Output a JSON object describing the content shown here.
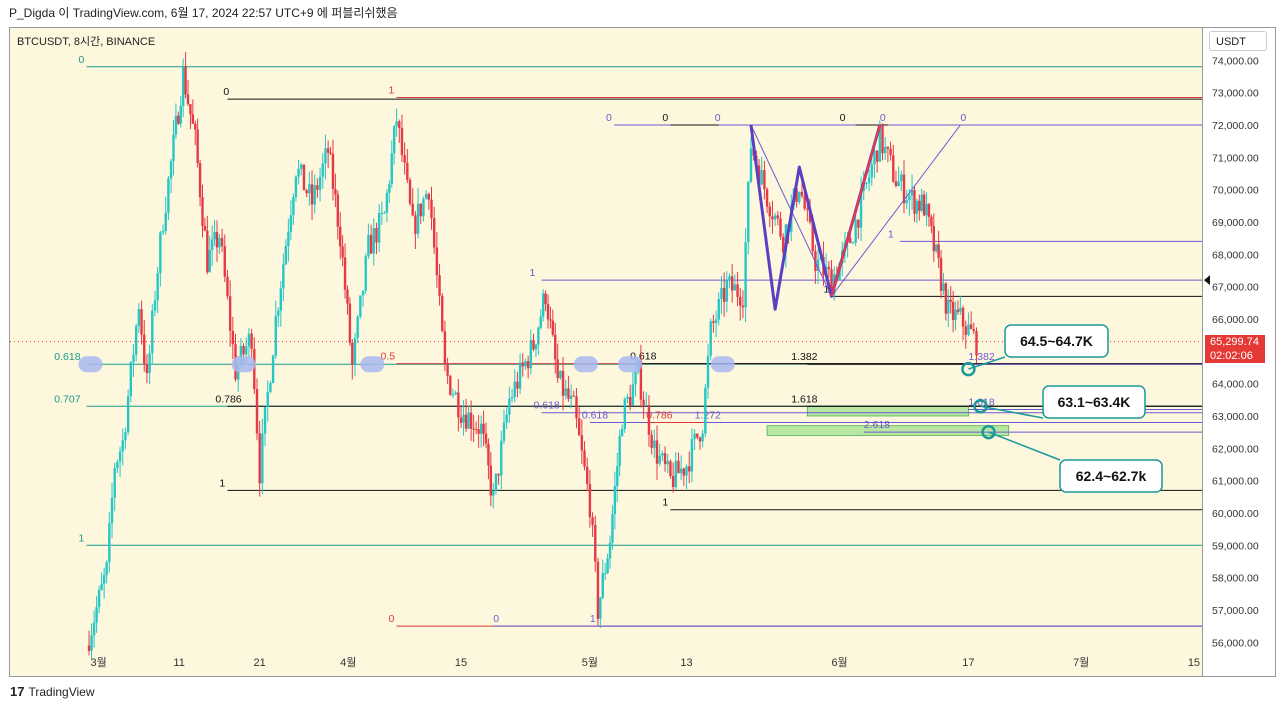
{
  "header": {
    "caption": "P_Digda 이 TradingView.com, 6월 17, 2024 22:57 UTC+9 에 퍼블리쉬했음"
  },
  "chart_header": {
    "symbol": "BTCUSDT, 8시간, BINANCE",
    "currency": "USDT"
  },
  "footer": {
    "brand": "TradingView",
    "logo_glyph": "17"
  },
  "colors": {
    "background": "#fdf7dd",
    "up": "#26c6c6",
    "down": "#e53946",
    "teal_line": "#1a9a8a",
    "purple_line": "#6b5bd2",
    "black_line": "#111111",
    "red_line": "#d83a3a",
    "callout": "#1a9a9a",
    "highlight": "#a8b8f0",
    "zone_green": "#9be08a"
  },
  "chart_data": {
    "type": "candlestick",
    "y_axis": {
      "min": 55700,
      "max": 75000,
      "ticks": [
        74000,
        73000,
        72000,
        71000,
        70000,
        69000,
        68000,
        67000,
        66000,
        65000,
        64000,
        63000,
        62000,
        61000,
        60000,
        59000,
        58000,
        57000,
        56000
      ],
      "tick_labels": [
        "74,000.00",
        "73,000.00",
        "72,000.00",
        "71,000.00",
        "70,000.00",
        "69,000.00",
        "68,000.00",
        "67,000.00",
        "66,000.00",
        "65,000.00",
        "64,000.00",
        "63,000.00",
        "62,000.00",
        "61,000.00",
        "60,000.00",
        "59,000.00",
        "58,000.00",
        "57,000.00",
        "56,000.00"
      ]
    },
    "x_axis": {
      "ticks": [
        {
          "label": "3월",
          "day": 0
        },
        {
          "label": "11",
          "day": 10
        },
        {
          "label": "21",
          "day": 20
        },
        {
          "label": "4월",
          "day": 31
        },
        {
          "label": "15",
          "day": 45
        },
        {
          "label": "5월",
          "day": 61
        },
        {
          "label": "13",
          "day": 73
        },
        {
          "label": "6월",
          "day": 92
        },
        {
          "label": "17",
          "day": 108
        },
        {
          "label": "7월",
          "day": 122
        },
        {
          "label": "15",
          "day": 136
        }
      ],
      "day_min": -11,
      "day_max": 137
    },
    "current_price": {
      "label": "65,299.74",
      "countdown": "02:02:06",
      "value": 65299.74
    },
    "marker_price": 67200,
    "candles_anchor_path": [
      {
        "day": -1.5,
        "price": 55900
      },
      {
        "day": 1,
        "price": 58200
      },
      {
        "day": 2,
        "price": 61500
      },
      {
        "day": 3,
        "price": 62200
      },
      {
        "day": 4,
        "price": 64300
      },
      {
        "day": 5,
        "price": 66500
      },
      {
        "day": 6,
        "price": 64000
      },
      {
        "day": 7,
        "price": 66800
      },
      {
        "day": 8,
        "price": 69100
      },
      {
        "day": 9,
        "price": 70800
      },
      {
        "day": 10.5,
        "price": 73600
      },
      {
        "day": 12,
        "price": 71500
      },
      {
        "day": 13.5,
        "price": 67800
      },
      {
        "day": 15,
        "price": 68600
      },
      {
        "day": 17,
        "price": 64400
      },
      {
        "day": 19,
        "price": 65500
      },
      {
        "day": 20,
        "price": 61300
      },
      {
        "day": 22,
        "price": 66000
      },
      {
        "day": 24.5,
        "price": 70700
      },
      {
        "day": 26.5,
        "price": 69600
      },
      {
        "day": 28.5,
        "price": 71200
      },
      {
        "day": 30,
        "price": 68600
      },
      {
        "day": 31.5,
        "price": 64500
      },
      {
        "day": 33.5,
        "price": 68200
      },
      {
        "day": 35.5,
        "price": 69200
      },
      {
        "day": 37,
        "price": 72200
      },
      {
        "day": 39,
        "price": 68800
      },
      {
        "day": 41,
        "price": 70100
      },
      {
        "day": 43,
        "price": 64400
      },
      {
        "day": 45,
        "price": 63200
      },
      {
        "day": 47.5,
        "price": 62600
      },
      {
        "day": 49,
        "price": 60400
      },
      {
        "day": 51,
        "price": 63500
      },
      {
        "day": 54,
        "price": 65200
      },
      {
        "day": 55.5,
        "price": 66800
      },
      {
        "day": 57,
        "price": 64100
      },
      {
        "day": 59,
        "price": 63200
      },
      {
        "day": 61,
        "price": 60300
      },
      {
        "day": 62,
        "price": 57000
      },
      {
        "day": 63.5,
        "price": 59200
      },
      {
        "day": 65,
        "price": 63000
      },
      {
        "day": 67,
        "price": 64300
      },
      {
        "day": 69,
        "price": 62000
      },
      {
        "day": 71,
        "price": 61000
      },
      {
        "day": 73,
        "price": 61500
      },
      {
        "day": 75,
        "price": 62800
      },
      {
        "day": 76,
        "price": 65600
      },
      {
        "day": 78,
        "price": 67000
      },
      {
        "day": 80,
        "price": 66800
      },
      {
        "day": 81,
        "price": 71400
      },
      {
        "day": 83,
        "price": 69800
      },
      {
        "day": 85,
        "price": 68500
      },
      {
        "day": 87,
        "price": 70200
      },
      {
        "day": 89,
        "price": 67800
      },
      {
        "day": 91,
        "price": 67200
      },
      {
        "day": 93,
        "price": 68200
      },
      {
        "day": 95,
        "price": 69800
      },
      {
        "day": 97,
        "price": 71600
      },
      {
        "day": 99,
        "price": 70300
      },
      {
        "day": 101,
        "price": 69700
      },
      {
        "day": 102.5,
        "price": 69500
      },
      {
        "day": 104,
        "price": 67900
      },
      {
        "day": 105.5,
        "price": 66200
      },
      {
        "day": 107,
        "price": 66000
      },
      {
        "day": 109,
        "price": 65300
      }
    ],
    "horizontal_levels": [
      {
        "price": 73800,
        "day_from": -1.5,
        "color": "teal_line",
        "label": "0",
        "label_day": -2.5
      },
      {
        "price": 72800,
        "day_from": 16,
        "color": "black_line",
        "label": "0",
        "label_day": 15.5
      },
      {
        "price": 72850,
        "day_from": 37,
        "color": "red_line",
        "label": "1",
        "label_day": 36
      },
      {
        "price": 72000,
        "day_from": 64,
        "color": "purple_line",
        "label": "0",
        "label_day": 63,
        "label_color": "purple_line"
      },
      {
        "price": 72000,
        "day_from": 71,
        "color": "black_line",
        "label": "0",
        "label_day": 70
      },
      {
        "price": 72000,
        "day_from": 77,
        "color": "purple_line",
        "label": "0",
        "label_day": 76.5
      },
      {
        "price": 72000,
        "day_from": 94,
        "color": "black_line",
        "label": "0",
        "label_day": 92
      },
      {
        "price": 72000,
        "day_from": 98,
        "color": "purple_line",
        "label": "0",
        "label_day": 97
      },
      {
        "price": 72000,
        "day_from": 107,
        "color": "purple_line",
        "label": "0",
        "label_day": 107
      },
      {
        "price": 68400,
        "day_from": 99.5,
        "color": "purple_line",
        "label": "1",
        "label_day": 98
      },
      {
        "price": 67200,
        "day_from": 55,
        "color": "purple_line",
        "label": "1",
        "label_day": 53.5
      },
      {
        "price": 66700,
        "day_from": 91,
        "color": "black_line",
        "label": "1",
        "label_day": 90
      },
      {
        "price": 64600,
        "day_from": -1.5,
        "color": "teal_line",
        "label": "0.618",
        "label_day": -5.5
      },
      {
        "price": 64620,
        "day_from": 37,
        "color": "red_line",
        "label": "0.5",
        "label_day": 35
      },
      {
        "price": 64620,
        "day_from": 67,
        "color": "black_line",
        "label": "0.618",
        "label_day": 66
      },
      {
        "price": 64600,
        "day_from": 88,
        "color": "black_line",
        "label": "1.382",
        "label_day": 86
      },
      {
        "price": 64600,
        "day_from": 108,
        "color": "purple_line",
        "label": "1.382",
        "label_day": 108
      },
      {
        "price": 63300,
        "day_from": -1.5,
        "color": "teal_line",
        "label": "0.707",
        "label_day": -5.5
      },
      {
        "price": 63300,
        "day_from": 16,
        "color": "black_line",
        "label": "0.786",
        "label_day": 14.5
      },
      {
        "price": 63300,
        "day_from": 88,
        "color": "black_line",
        "label": "1.618",
        "label_day": 86
      },
      {
        "price": 63200,
        "day_from": 108,
        "color": "purple_line",
        "label": "1.618",
        "label_day": 108
      },
      {
        "price": 63100,
        "day_from": 55,
        "color": "purple_line",
        "label": "0.618",
        "label_day": 54
      },
      {
        "price": 62800,
        "day_from": 61,
        "color": "purple_line",
        "label": "0.618",
        "label_day": 60
      },
      {
        "price": 62800,
        "day_from": 68,
        "color": "red_line",
        "label": "0.786",
        "label_day": 68
      },
      {
        "price": 62800,
        "day_from": 75,
        "color": "purple_line",
        "label": "1.272",
        "label_day": 74
      },
      {
        "price": 62500,
        "day_from": 95,
        "color": "purple_line",
        "label": "2.618",
        "label_day": 95
      },
      {
        "price": 60700,
        "day_from": 16,
        "color": "black_line",
        "label": "1",
        "label_day": 15
      },
      {
        "price": 60100,
        "day_from": 71,
        "color": "black_line",
        "label": "1",
        "label_day": 70
      },
      {
        "price": 59000,
        "day_from": -1.5,
        "color": "teal_line",
        "label": "1",
        "label_day": -2.5
      },
      {
        "price": 56500,
        "day_from": 37,
        "color": "red_line",
        "label": "0",
        "label_day": 36
      },
      {
        "price": 56500,
        "day_from": 49,
        "color": "purple_line",
        "label": "0",
        "label_day": 49
      },
      {
        "price": 56500,
        "day_from": 62,
        "color": "purple_line",
        "label": "1",
        "label_day": 61
      }
    ],
    "highlights": [
      {
        "day": -1,
        "price": 64600
      },
      {
        "day": 18,
        "price": 64600
      },
      {
        "day": 34,
        "price": 64600
      },
      {
        "day": 60.5,
        "price": 64600
      },
      {
        "day": 66,
        "price": 64600
      },
      {
        "day": 77.5,
        "price": 64600
      }
    ],
    "zones": [
      {
        "day_from": 88,
        "day_to": 108,
        "price_from": 63000,
        "price_to": 63300
      },
      {
        "day_from": 83,
        "day_to": 113,
        "price_from": 62400,
        "price_to": 62700
      }
    ],
    "harmonic_pattern": [
      {
        "day": 81,
        "price": 72000
      },
      {
        "day": 84,
        "price": 66300
      },
      {
        "day": 87,
        "price": 70700
      },
      {
        "day": 91,
        "price": 66700
      },
      {
        "day": 97,
        "price": 72000
      }
    ],
    "pattern_outline": [
      {
        "day": 81,
        "price": 72000
      },
      {
        "day": 91,
        "price": 66700
      },
      {
        "day": 107,
        "price": 72000
      }
    ],
    "target_circles": [
      {
        "day": 108,
        "price": 64450
      },
      {
        "day": 109.5,
        "price": 63300
      },
      {
        "day": 110.5,
        "price": 62500
      }
    ],
    "callouts": [
      {
        "label": "64.5~64.7K",
        "target": 0
      },
      {
        "label": "63.1~63.4K",
        "target": 1
      },
      {
        "label": "62.4~62.7k",
        "target": 2
      }
    ]
  }
}
